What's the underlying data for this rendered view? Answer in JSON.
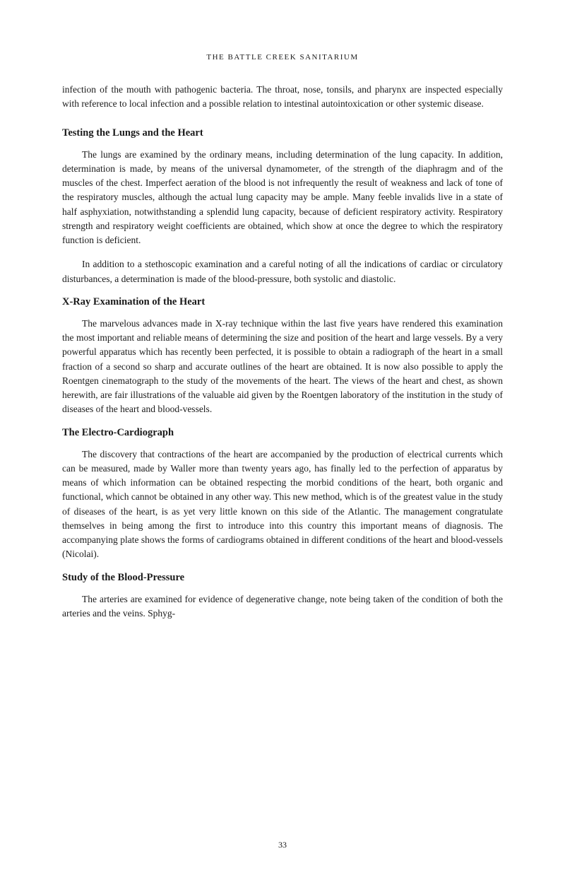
{
  "header": "THE BATTLE CREEK SANITARIUM",
  "intro": "infection of the mouth with pathogenic bacteria. The throat, nose, tonsils, and pharynx are inspected especially with reference to local infection and a possible relation to intestinal autointoxication or other systemic disease.",
  "section1": {
    "heading": "Testing the Lungs and the Heart",
    "para1": "The lungs are examined by the ordinary means, including determination of the lung capacity. In addition, determination is made, by means of the universal dynamometer, of the strength of the diaphragm and of the muscles of the chest. Imperfect aeration of the blood is not infrequently the result of weakness and lack of tone of the respiratory muscles, although the actual lung capacity may be ample. Many feeble invalids live in a state of half asphyxiation, notwithstanding a splendid lung capacity, because of deficient respiratory activity. Respiratory strength and respiratory weight coefficients are obtained, which show at once the degree to which the respiratory function is deficient.",
    "para2": "In addition to a stethoscopic examination and a careful noting of all the indications of cardiac or circulatory disturbances, a determination is made of the blood-pressure, both systolic and diastolic."
  },
  "section2": {
    "heading": "X-Ray Examination of the Heart",
    "para1": "The marvelous advances made in X-ray technique within the last five years have rendered this examination the most important and reliable means of determining the size and position of the heart and large vessels. By a very powerful apparatus which has recently been perfected, it is possible to obtain a radiograph of the heart in a small fraction of a second so sharp and accurate outlines of the heart are obtained. It is now also possible to apply the Roentgen cinematograph to the study of the movements of the heart. The views of the heart and chest, as shown herewith, are fair illustrations of the valuable aid given by the Roentgen laboratory of the institution in the study of diseases of the heart and blood-vessels."
  },
  "section3": {
    "heading": "The Electro-Cardiograph",
    "para1": "The discovery that contractions of the heart are accompanied by the production of electrical currents which can be measured, made by Waller more than twenty years ago, has finally led to the perfection of apparatus by means of which information can be obtained respecting the morbid conditions of the heart, both organic and functional, which cannot be obtained in any other way. This new method, which is of the greatest value in the study of diseases of the heart, is as yet very little known on this side of the Atlantic. The management congratulate themselves in being among the first to introduce into this country this important means of diagnosis. The accompanying plate shows the forms of cardiograms obtained in different conditions of the heart and blood-vessels (Nicolai)."
  },
  "section4": {
    "heading": "Study of the Blood-Pressure",
    "para1": "The arteries are examined for evidence of degenerative change, note being taken of the condition of both the arteries and the veins. Sphyg-"
  },
  "pageNumber": "33"
}
